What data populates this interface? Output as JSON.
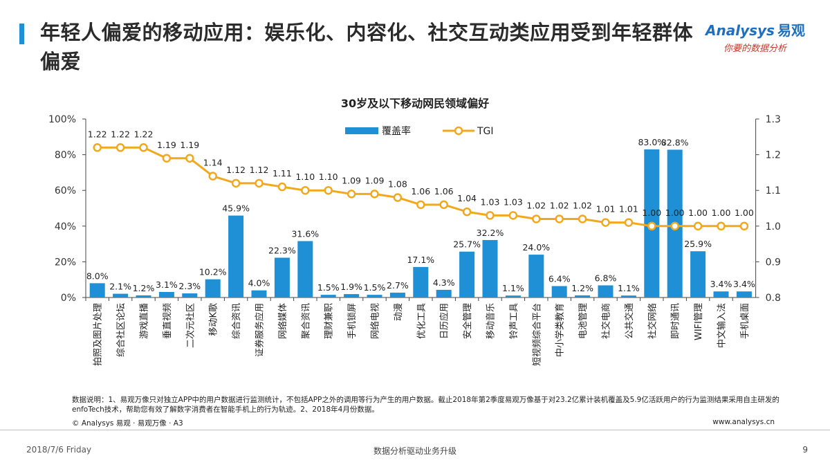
{
  "header": {
    "title": "年轻人偏爱的移动应用：娱乐化、内容化、社交互动类应用受到年轻群体偏爱",
    "logo_text": "Analysys",
    "logo_cn": "易观",
    "logo_slogan": "你要的数据分析"
  },
  "colors": {
    "accent": "#1f8fd6",
    "bar": "#1f8fd6",
    "line": "#f2a81d",
    "marker_fill": "#ffffff"
  },
  "chart_data": {
    "type": "bar",
    "title": "30岁及以下移动网民领域偏好",
    "categories": [
      "拍照及图片处理",
      "综合社区论坛",
      "游戏直播",
      "垂直视频",
      "二次元社区",
      "移动K歌",
      "综合资讯",
      "证券服务应用",
      "网络媒体",
      "聚合资讯",
      "理财兼职",
      "手机锁屏",
      "网络电视",
      "动漫",
      "优化工具",
      "日历应用",
      "安全管理",
      "移动音乐",
      "铃声工具",
      "短视频综合平台",
      "中小学类教育",
      "电池管理",
      "社交电商",
      "公共交通",
      "社交网络",
      "即时通讯",
      "WIFI管理",
      "中文输入法",
      "手机桌面"
    ],
    "series": [
      {
        "name": "覆盖率",
        "type": "bar",
        "axis": "left",
        "values": [
          8.0,
          2.1,
          1.2,
          3.1,
          2.3,
          10.2,
          45.9,
          4.0,
          22.3,
          31.6,
          1.5,
          1.9,
          1.5,
          2.7,
          17.1,
          4.3,
          25.7,
          32.2,
          1.1,
          24.0,
          6.4,
          1.2,
          6.8,
          1.1,
          83.0,
          82.8,
          25.9,
          3.4,
          3.4
        ],
        "labels": [
          "8.0%",
          "2.1%",
          "1.2%",
          "3.1%",
          "2.3%",
          "10.2%",
          "45.9%",
          "4.0%",
          "22.3%",
          "31.6%",
          "1.5%",
          "1.9%",
          "1.5%",
          "2.7%",
          "17.1%",
          "4.3%",
          "25.7%",
          "32.2%",
          "1.1%",
          "24.0%",
          "6.4%",
          "1.2%",
          "6.8%",
          "1.1%",
          "83.0%",
          "82.8%",
          "25.9%",
          "3.4%",
          "3.4%"
        ]
      },
      {
        "name": "TGI",
        "type": "line",
        "axis": "right",
        "values": [
          1.22,
          1.22,
          1.22,
          1.19,
          1.19,
          1.14,
          1.12,
          1.12,
          1.11,
          1.1,
          1.1,
          1.09,
          1.09,
          1.08,
          1.06,
          1.06,
          1.04,
          1.03,
          1.03,
          1.02,
          1.02,
          1.02,
          1.01,
          1.01,
          1.0,
          1.0,
          1.0,
          1.0,
          1.0
        ],
        "labels": [
          "1.22",
          "1.22",
          "1.22",
          "1.19",
          "1.19",
          "1.14",
          "1.12",
          "1.12",
          "1.11",
          "1.10",
          "1.10",
          "1.09",
          "1.09",
          "1.08",
          "1.06",
          "1.06",
          "1.04",
          "1.03",
          "1.03",
          "1.02",
          "1.02",
          "1.02",
          "1.01",
          "1.01",
          "1.00",
          "1.00",
          "1.00",
          "1.00",
          "1.00"
        ]
      }
    ],
    "y_left": {
      "ticks": [
        "0%",
        "20%",
        "40%",
        "60%",
        "80%",
        "100%"
      ],
      "min": 0,
      "max": 100
    },
    "y_right": {
      "ticks": [
        "0.8",
        "0.9",
        "1.0",
        "1.1",
        "1.2",
        "1.3"
      ],
      "min": 0.8,
      "max": 1.3
    },
    "legend_placement": "top-center",
    "grid": false
  },
  "footer": {
    "notes": "数据说明：1、易观万像只对独立APP中的用户数据进行监测统计，不包括APP之外的调用等行为产生的用户数据。截止2018年第2季度易观万像基于对23.2亿累计装机覆盖及5.9亿活跃用户的行为监测结果采用自主研发的enfoTech技术，帮助您有效了解数字消费者在智能手机上的行为轨迹。2、2018年4月份数据。",
    "copyright": "© Analysys 易观 · 易观万像 · A3",
    "website": "www.analysys.cn",
    "date": "2018/7/6 Friday",
    "slogan": "数据分析驱动业务升级",
    "page": "9"
  }
}
